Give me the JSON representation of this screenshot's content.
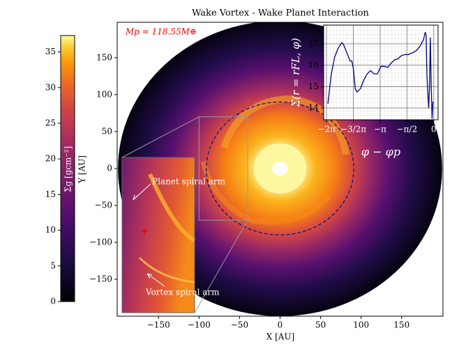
{
  "chart_data": [
    {
      "type": "image",
      "title": "Wake Vortex - Wake Planet Interaction",
      "xlabel": "X [AU]",
      "ylabel": "Y [AU]",
      "xlim": [
        -201,
        201
      ],
      "ylim": [
        -200,
        198
      ],
      "xticks": [
        {
          "value": -150,
          "label": "−150"
        },
        {
          "value": -100,
          "label": "−100"
        },
        {
          "value": -50,
          "label": "−50"
        },
        0,
        50,
        100,
        150
      ],
      "yticks": [
        {
          "value": -150,
          "label": "−150"
        },
        {
          "value": -100,
          "label": "−100"
        },
        {
          "value": -50,
          "label": "−50"
        },
        0,
        50,
        100,
        150
      ],
      "colorbar": {
        "label": "Σg [gcm⁻²]",
        "lim": [
          0,
          37.3
        ],
        "ticks": [
          0,
          5,
          10,
          15,
          20,
          25,
          30,
          35
        ]
      },
      "annotations": [
        "Mp = 118.55M⊕",
        "Planet spiral arm",
        "Vortex spiral arm"
      ]
    },
    {
      "type": "line",
      "xlabel": "φ − φp",
      "ylabel": "Σ(r = rFL, φ)",
      "xlim": [
        -6.45,
        0.25
      ],
      "ylim": [
        13.45,
        17.88
      ],
      "xticks": [
        {
          "value": -6.283,
          "label": "−2π"
        },
        {
          "value": -4.712,
          "label": "−3/2π"
        },
        {
          "value": -3.142,
          "label": "−π"
        },
        {
          "value": -1.571,
          "label": "−π/2"
        },
        0
      ],
      "yticks": [
        14,
        15,
        16,
        17
      ],
      "grid": true,
      "color": "#00007f",
      "x": [
        -6.2,
        -6.0,
        -5.8,
        -5.6,
        -5.4,
        -5.3,
        -5.1,
        -4.9,
        -4.8,
        -4.7,
        -4.6,
        -4.5,
        -4.3,
        -4.1,
        -3.9,
        -3.7,
        -3.5,
        -3.3,
        -3.1,
        -2.9,
        -2.7,
        -2.5,
        -2.3,
        -2.1,
        -1.9,
        -1.7,
        -1.5,
        -1.2,
        -1.0,
        -0.8,
        -0.6,
        -0.5,
        -0.45,
        -0.4,
        -0.3,
        -0.25,
        -0.2,
        -0.15,
        -0.1,
        -0.05
      ],
      "values": [
        14.2,
        15.6,
        16.4,
        16.8,
        17.05,
        17.0,
        16.6,
        16.2,
        16.2,
        15.8,
        14.9,
        14.75,
        14.9,
        15.3,
        15.6,
        15.75,
        15.6,
        15.6,
        15.95,
        15.95,
        15.9,
        16.1,
        16.25,
        16.3,
        16.45,
        16.5,
        16.5,
        16.6,
        16.7,
        16.9,
        17.2,
        17.55,
        17.4,
        15.5,
        14.0,
        15.0,
        17.3,
        15.0,
        13.5,
        14.3
      ]
    }
  ]
}
